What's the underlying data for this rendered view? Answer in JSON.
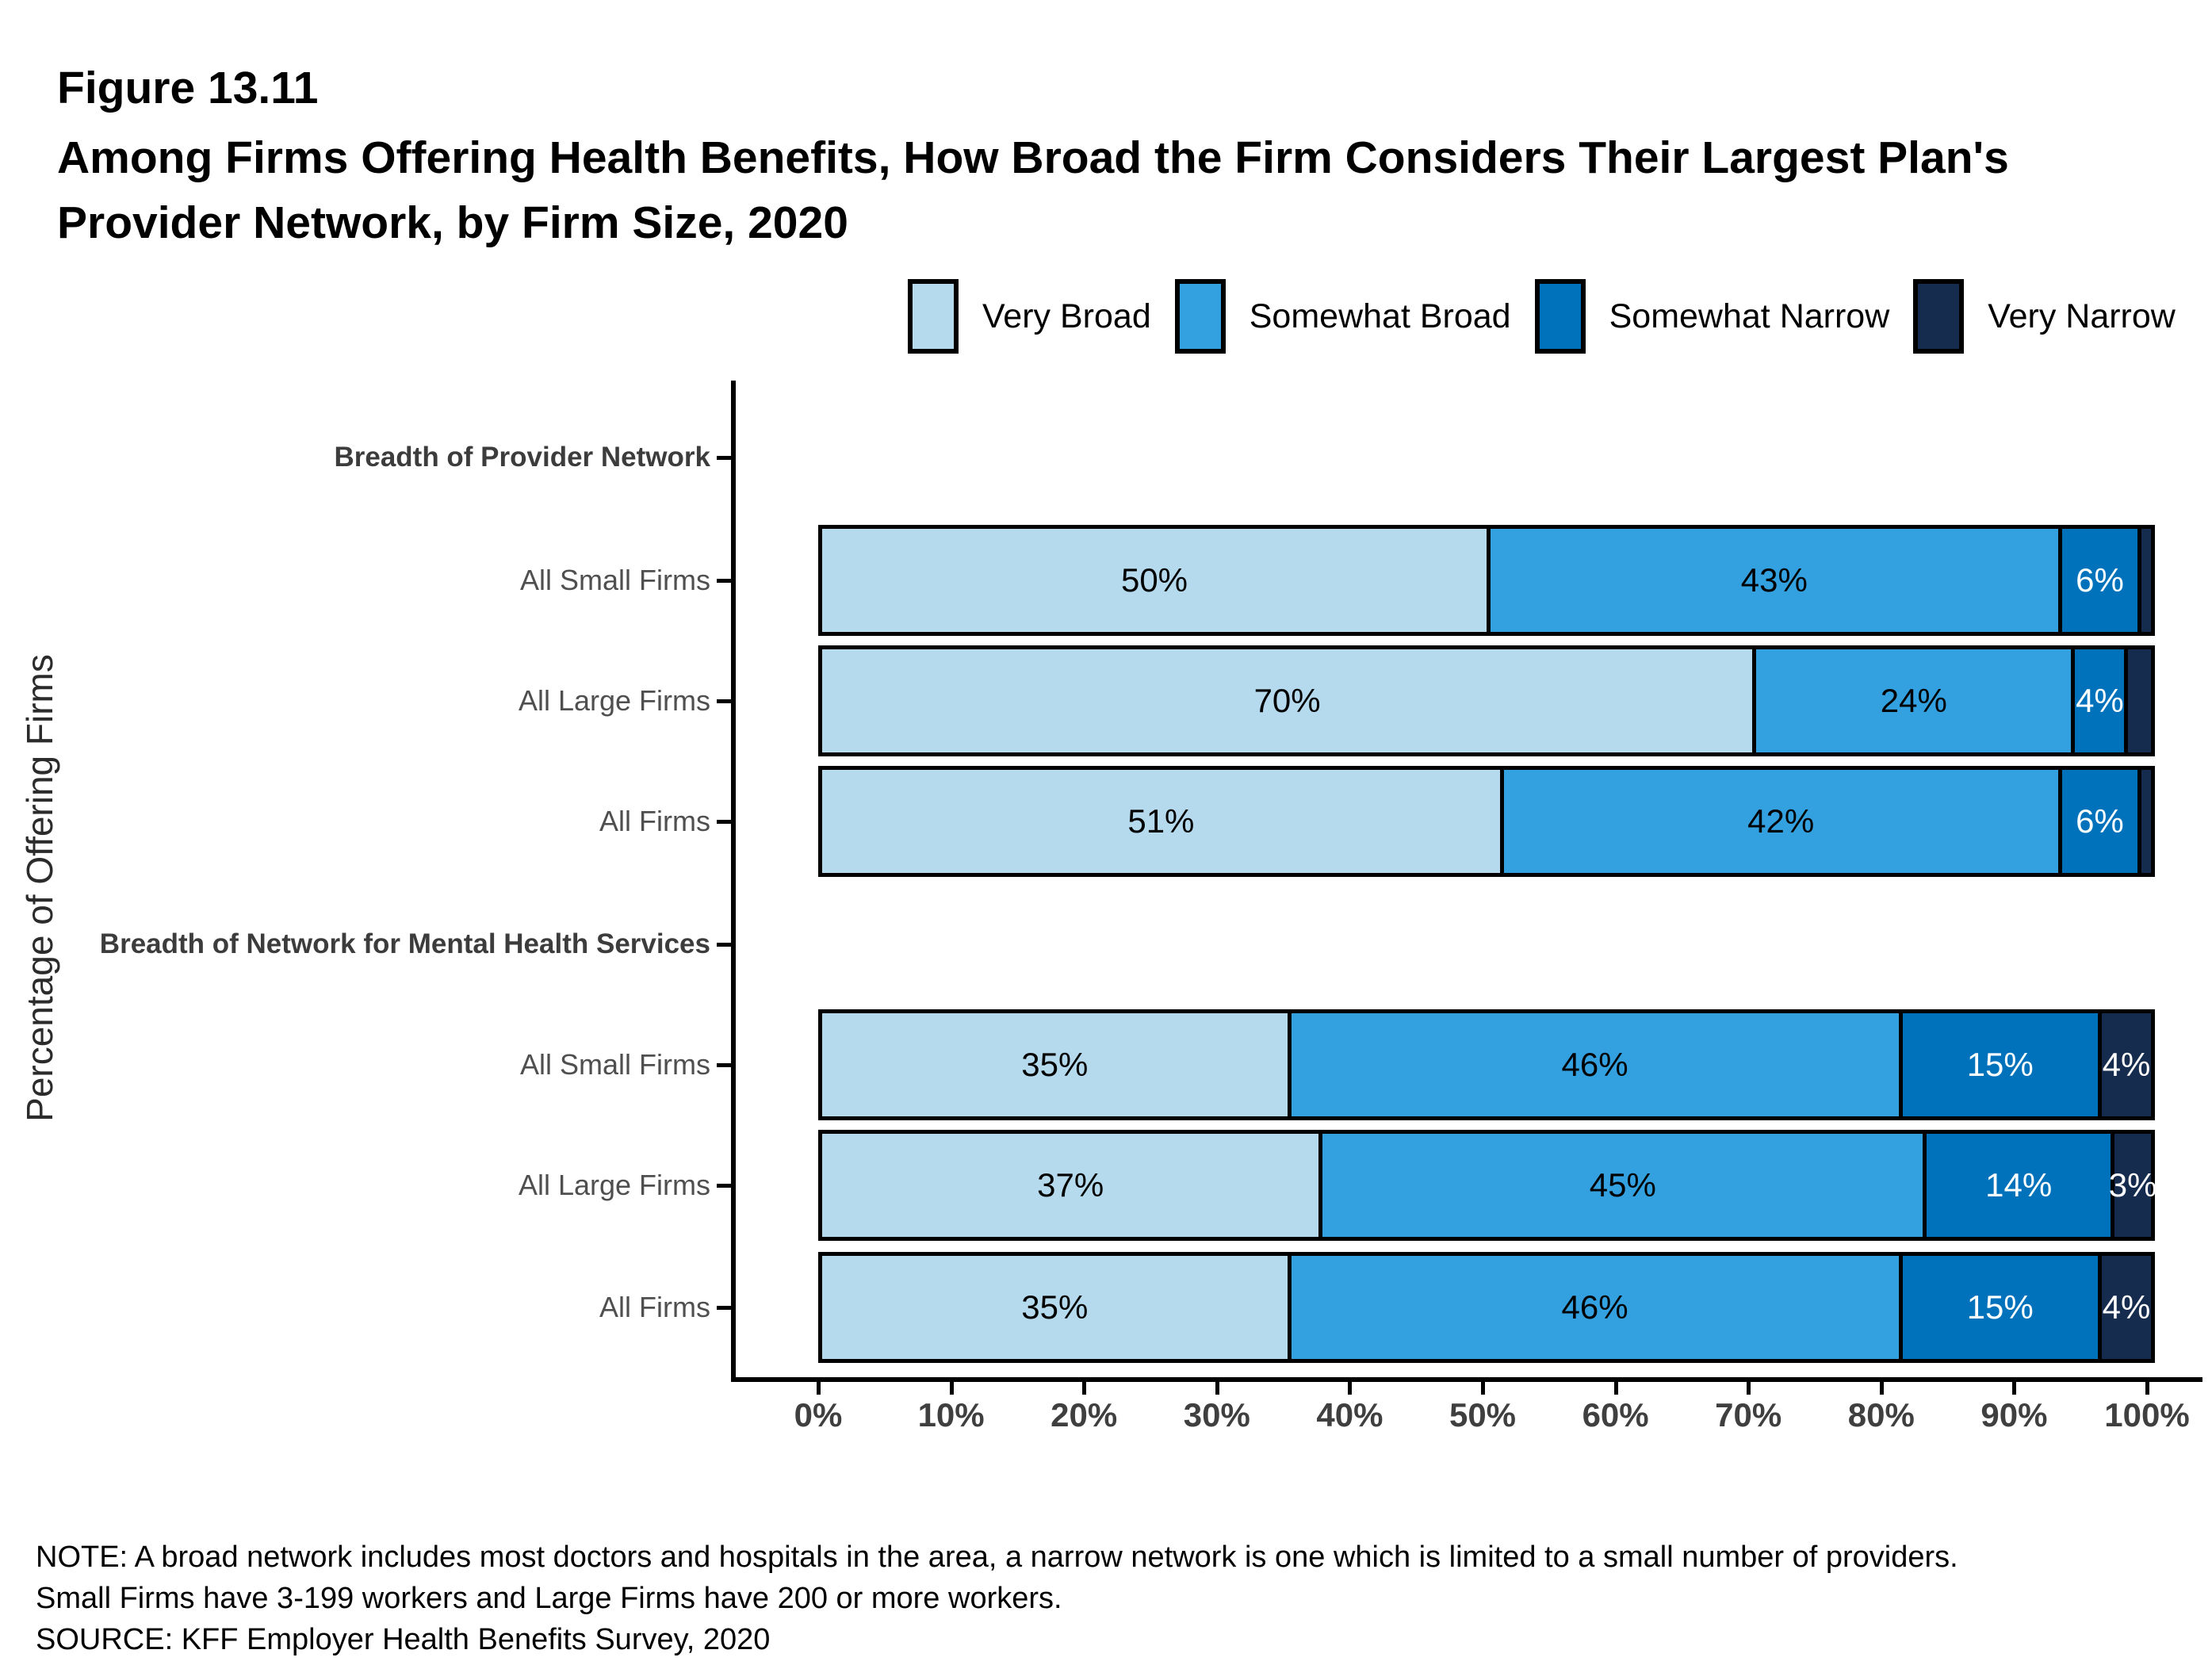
{
  "figure_label": "Figure 13.11",
  "title_line1": "Among Firms Offering Health Benefits, How Broad the Firm Considers Their Largest Plan's",
  "title_line2": "Provider Network, by Firm Size, 2020",
  "accent_colors": {
    "very_broad": "#B5DAEE",
    "somewhat_broad": "#33A1DF",
    "somewhat_narrow": "#0072BC",
    "very_narrow": "#152C4E"
  },
  "chart_data": {
    "type": "bar",
    "variant": "horizontal-stacked",
    "title": "Among Firms Offering Health Benefits, How Broad the Firm Considers Their Largest Plan's Provider Network, by Firm Size, 2020",
    "ylabel": "Percentage of Offering Firms",
    "xlabel": "",
    "xlim": [
      0,
      100
    ],
    "x_ticks": [
      "0%",
      "10%",
      "20%",
      "30%",
      "40%",
      "50%",
      "60%",
      "70%",
      "80%",
      "90%",
      "100%"
    ],
    "grid": false,
    "legend_position": "top",
    "legend": [
      {
        "label": "Very Broad",
        "color": "#B5DAEE"
      },
      {
        "label": "Somewhat Broad",
        "color": "#33A1DF"
      },
      {
        "label": "Somewhat Narrow",
        "color": "#0072BC"
      },
      {
        "label": "Very Narrow",
        "color": "#152C4E"
      }
    ],
    "rows": [
      {
        "kind": "header",
        "label": "Breadth of Provider Network"
      },
      {
        "kind": "bar",
        "label": "All Small Firms",
        "values": [
          50,
          43,
          6,
          1
        ],
        "value_labels": [
          "50%",
          "43%",
          "6%",
          ""
        ]
      },
      {
        "kind": "bar",
        "label": "All Large Firms",
        "values": [
          70,
          24,
          4,
          2
        ],
        "value_labels": [
          "70%",
          "24%",
          "4%",
          ""
        ]
      },
      {
        "kind": "bar",
        "label": "All Firms",
        "values": [
          51,
          42,
          6,
          1
        ],
        "value_labels": [
          "51%",
          "42%",
          "6%",
          ""
        ]
      },
      {
        "kind": "header",
        "label": "Breadth of Network for Mental Health Services"
      },
      {
        "kind": "bar",
        "label": "All Small Firms",
        "values": [
          35,
          46,
          15,
          4
        ],
        "value_labels": [
          "35%",
          "46%",
          "15%",
          "4%"
        ]
      },
      {
        "kind": "bar",
        "label": "All Large Firms",
        "values": [
          37,
          45,
          14,
          3
        ],
        "value_labels": [
          "37%",
          "45%",
          "14%",
          "3%"
        ]
      },
      {
        "kind": "bar",
        "label": "All Firms",
        "values": [
          35,
          46,
          15,
          4
        ],
        "value_labels": [
          "35%",
          "46%",
          "15%",
          "4%"
        ]
      }
    ]
  },
  "notes": {
    "line1": "NOTE: A broad network includes most doctors and hospitals in the area, a narrow network is one which is limited to a small number of providers.",
    "line2": "Small Firms have 3-199 workers and Large Firms have 200 or more workers.",
    "line3": "SOURCE: KFF Employer Health Benefits Survey, 2020"
  }
}
